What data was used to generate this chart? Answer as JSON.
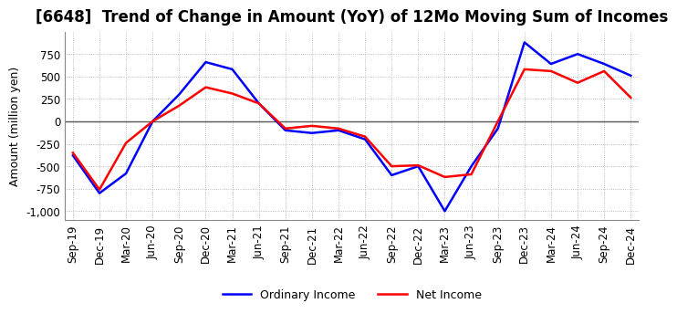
{
  "title": "[6648]  Trend of Change in Amount (YoY) of 12Mo Moving Sum of Incomes",
  "ylabel": "Amount (million yen)",
  "ylim": [
    -1100,
    1000
  ],
  "yticks": [
    -1000,
    -750,
    -500,
    -250,
    0,
    250,
    500,
    750
  ],
  "x_labels": [
    "Sep-19",
    "Dec-19",
    "Mar-20",
    "Jun-20",
    "Sep-20",
    "Dec-20",
    "Mar-21",
    "Jun-21",
    "Sep-21",
    "Dec-21",
    "Mar-22",
    "Jun-22",
    "Sep-22",
    "Dec-22",
    "Mar-23",
    "Jun-23",
    "Sep-23",
    "Dec-23",
    "Mar-24",
    "Jun-24",
    "Sep-24",
    "Dec-24"
  ],
  "ordinary_income": [
    -380,
    -800,
    -580,
    0,
    300,
    660,
    580,
    200,
    -100,
    -130,
    -100,
    -200,
    -600,
    -500,
    -1000,
    -500,
    -80,
    880,
    640,
    750,
    640,
    510
  ],
  "net_income": [
    -350,
    -760,
    -240,
    0,
    175,
    380,
    310,
    200,
    -80,
    -50,
    -80,
    -170,
    -500,
    -490,
    -620,
    -590,
    0,
    580,
    560,
    430,
    560,
    265
  ],
  "ordinary_color": "#0000ff",
  "net_color": "#ff0000",
  "line_width": 1.8,
  "grid_color": "#aaaaaa",
  "grid_style": "dotted",
  "zero_line_color": "#555555",
  "background_color": "#ffffff",
  "title_fontsize": 12,
  "axis_fontsize": 9,
  "tick_fontsize": 8.5
}
